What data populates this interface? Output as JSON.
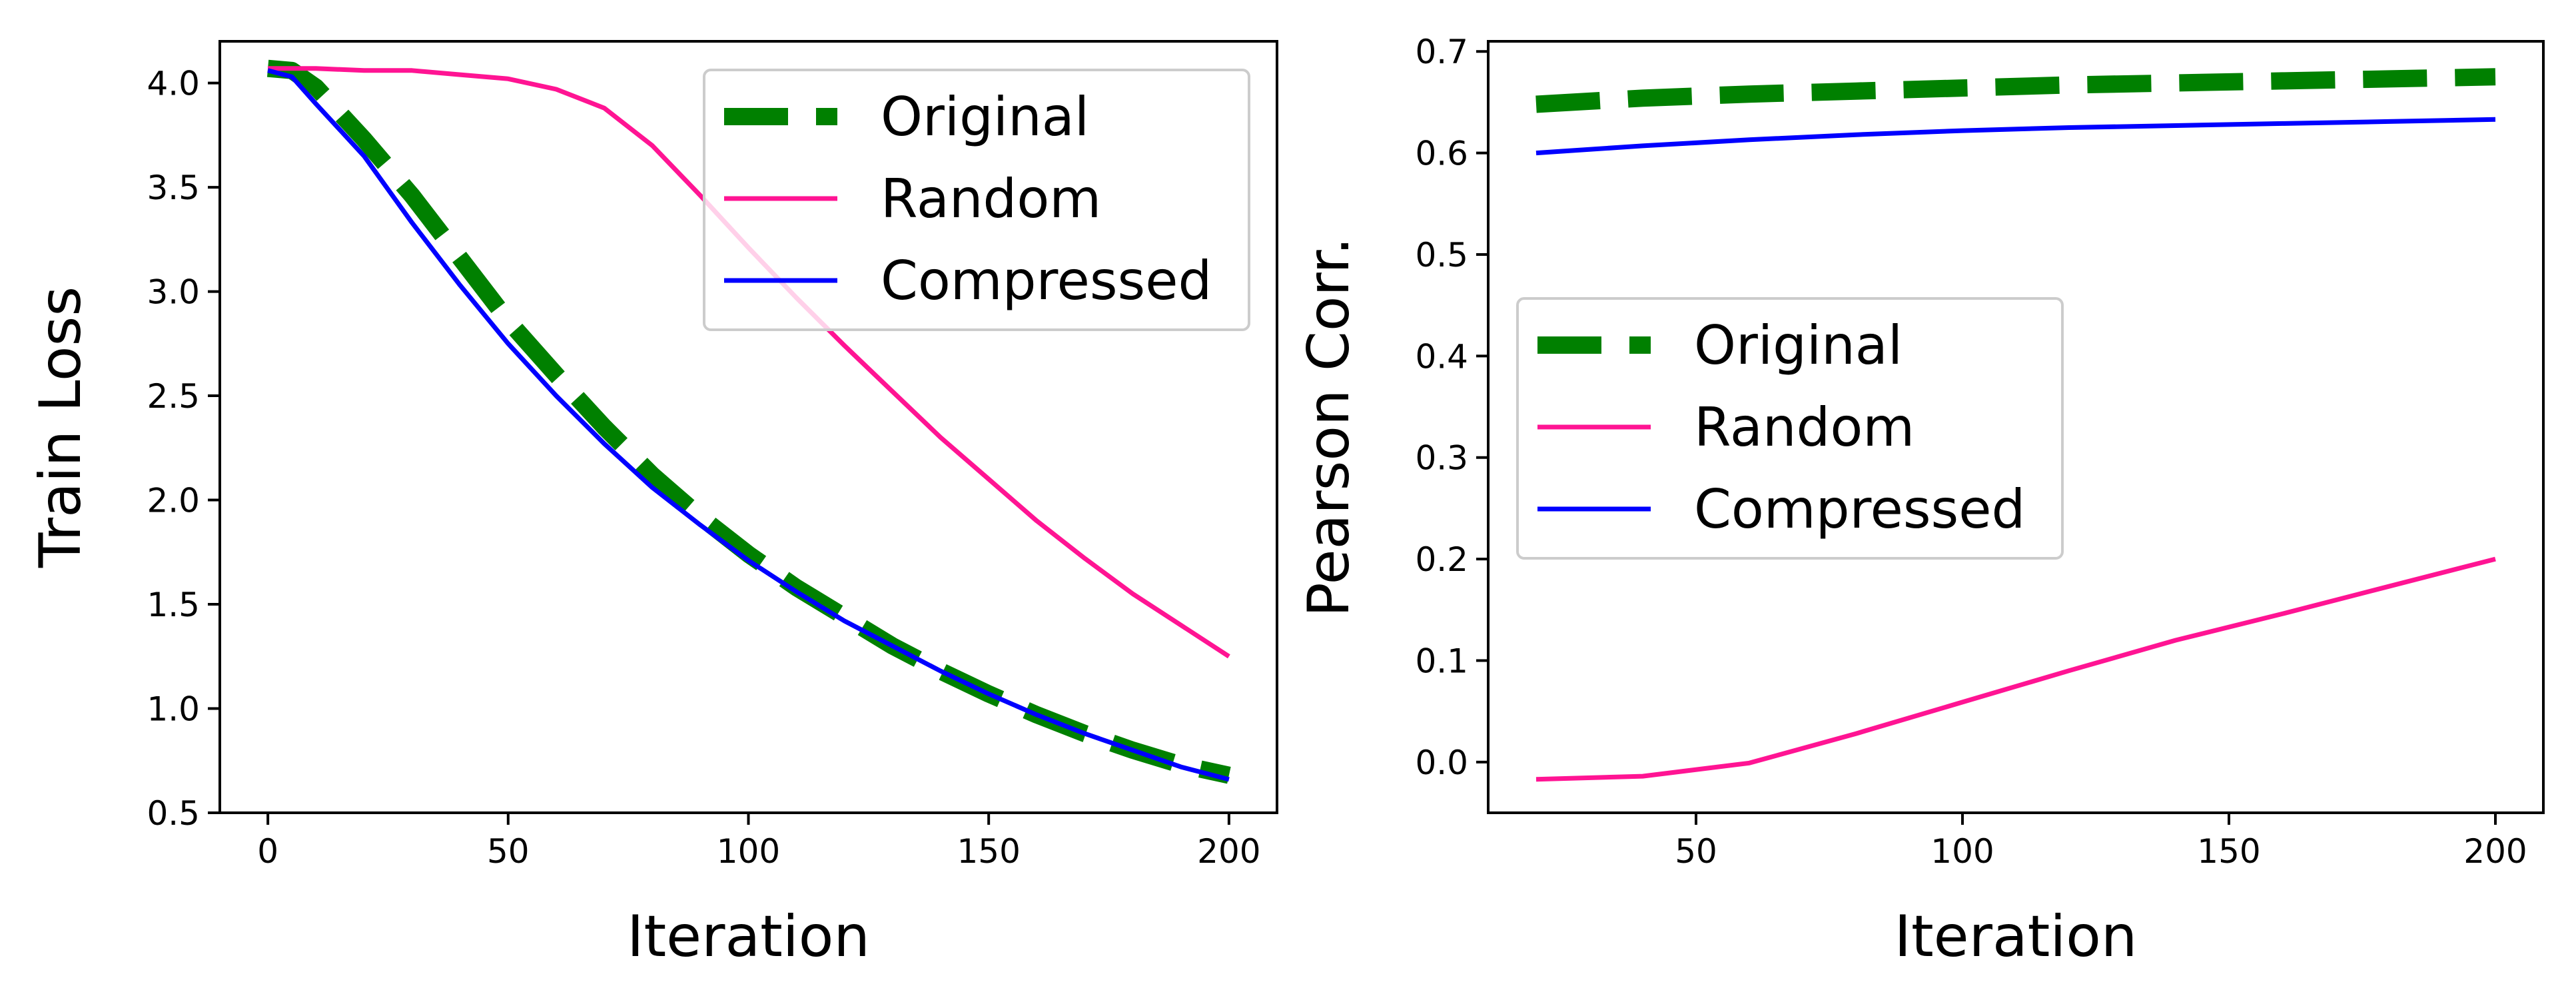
{
  "chart_data": [
    {
      "type": "line",
      "xlabel": "Iteration",
      "ylabel": "Train Loss",
      "xlim": [
        -10,
        210
      ],
      "ylim": [
        0.5,
        4.2
      ],
      "xticks": [
        0,
        50,
        100,
        150,
        200
      ],
      "yticks": [
        0.5,
        1.0,
        1.5,
        2.0,
        2.5,
        3.0,
        3.5,
        4.0
      ],
      "xtick_labels": [
        "0",
        "50",
        "100",
        "150",
        "200"
      ],
      "ytick_labels": [
        "0.5",
        "1.0",
        "1.5",
        "2.0",
        "2.5",
        "3.0",
        "3.5",
        "4.0"
      ],
      "legend_position": "upper right",
      "series": [
        {
          "name": "Original",
          "color": "#008000",
          "style": "dashed-thick",
          "x": [
            0,
            5,
            10,
            20,
            30,
            40,
            50,
            60,
            70,
            80,
            90,
            100,
            110,
            120,
            130,
            140,
            150,
            160,
            170,
            180,
            190,
            200
          ],
          "y": [
            4.07,
            4.06,
            3.98,
            3.73,
            3.46,
            3.16,
            2.86,
            2.6,
            2.35,
            2.12,
            1.92,
            1.74,
            1.58,
            1.44,
            1.3,
            1.18,
            1.07,
            0.97,
            0.88,
            0.8,
            0.73,
            0.68
          ]
        },
        {
          "name": "Random",
          "color": "#ff1493",
          "style": "solid",
          "x": [
            0,
            10,
            20,
            30,
            40,
            50,
            60,
            70,
            80,
            90,
            100,
            110,
            120,
            130,
            140,
            150,
            160,
            170,
            180,
            190,
            200
          ],
          "y": [
            4.07,
            4.07,
            4.06,
            4.06,
            4.04,
            4.02,
            3.97,
            3.88,
            3.7,
            3.46,
            3.21,
            2.97,
            2.74,
            2.52,
            2.3,
            2.1,
            1.9,
            1.72,
            1.55,
            1.4,
            1.25
          ]
        },
        {
          "name": "Compressed",
          "color": "#0000ff",
          "style": "solid",
          "x": [
            0,
            5,
            10,
            20,
            30,
            40,
            50,
            60,
            70,
            80,
            90,
            100,
            110,
            120,
            130,
            140,
            150,
            160,
            170,
            180,
            190,
            200
          ],
          "y": [
            4.06,
            4.03,
            3.9,
            3.65,
            3.33,
            3.03,
            2.75,
            2.5,
            2.27,
            2.06,
            1.88,
            1.71,
            1.56,
            1.42,
            1.3,
            1.18,
            1.07,
            0.97,
            0.88,
            0.8,
            0.72,
            0.66
          ]
        }
      ]
    },
    {
      "type": "line",
      "xlabel": "Iteration",
      "ylabel": "Pearson Corr.",
      "xlim": [
        11,
        209
      ],
      "ylim": [
        -0.05,
        0.71
      ],
      "xticks": [
        50,
        100,
        150,
        200
      ],
      "yticks": [
        0.0,
        0.1,
        0.2,
        0.3,
        0.4,
        0.5,
        0.6,
        0.7
      ],
      "xtick_labels": [
        "50",
        "100",
        "150",
        "200"
      ],
      "ytick_labels": [
        "0.0",
        "0.1",
        "0.2",
        "0.3",
        "0.4",
        "0.5",
        "0.6",
        "0.7"
      ],
      "legend_position": "center left",
      "series": [
        {
          "name": "Original",
          "color": "#008000",
          "style": "dashed-thick",
          "x": [
            20,
            40,
            60,
            80,
            100,
            120,
            140,
            160,
            180,
            200
          ],
          "y": [
            0.648,
            0.654,
            0.658,
            0.661,
            0.664,
            0.667,
            0.669,
            0.671,
            0.673,
            0.675
          ]
        },
        {
          "name": "Random",
          "color": "#ff1493",
          "style": "solid",
          "x": [
            20,
            40,
            60,
            80,
            100,
            120,
            140,
            160,
            180,
            200
          ],
          "y": [
            -0.017,
            -0.014,
            -0.001,
            0.028,
            0.059,
            0.09,
            0.12,
            0.146,
            0.173,
            0.2
          ]
        },
        {
          "name": "Compressed",
          "color": "#0000ff",
          "style": "solid",
          "x": [
            20,
            40,
            60,
            80,
            100,
            120,
            140,
            160,
            180,
            200
          ],
          "y": [
            0.6,
            0.607,
            0.613,
            0.618,
            0.622,
            0.625,
            0.627,
            0.629,
            0.631,
            0.633
          ]
        }
      ]
    }
  ]
}
